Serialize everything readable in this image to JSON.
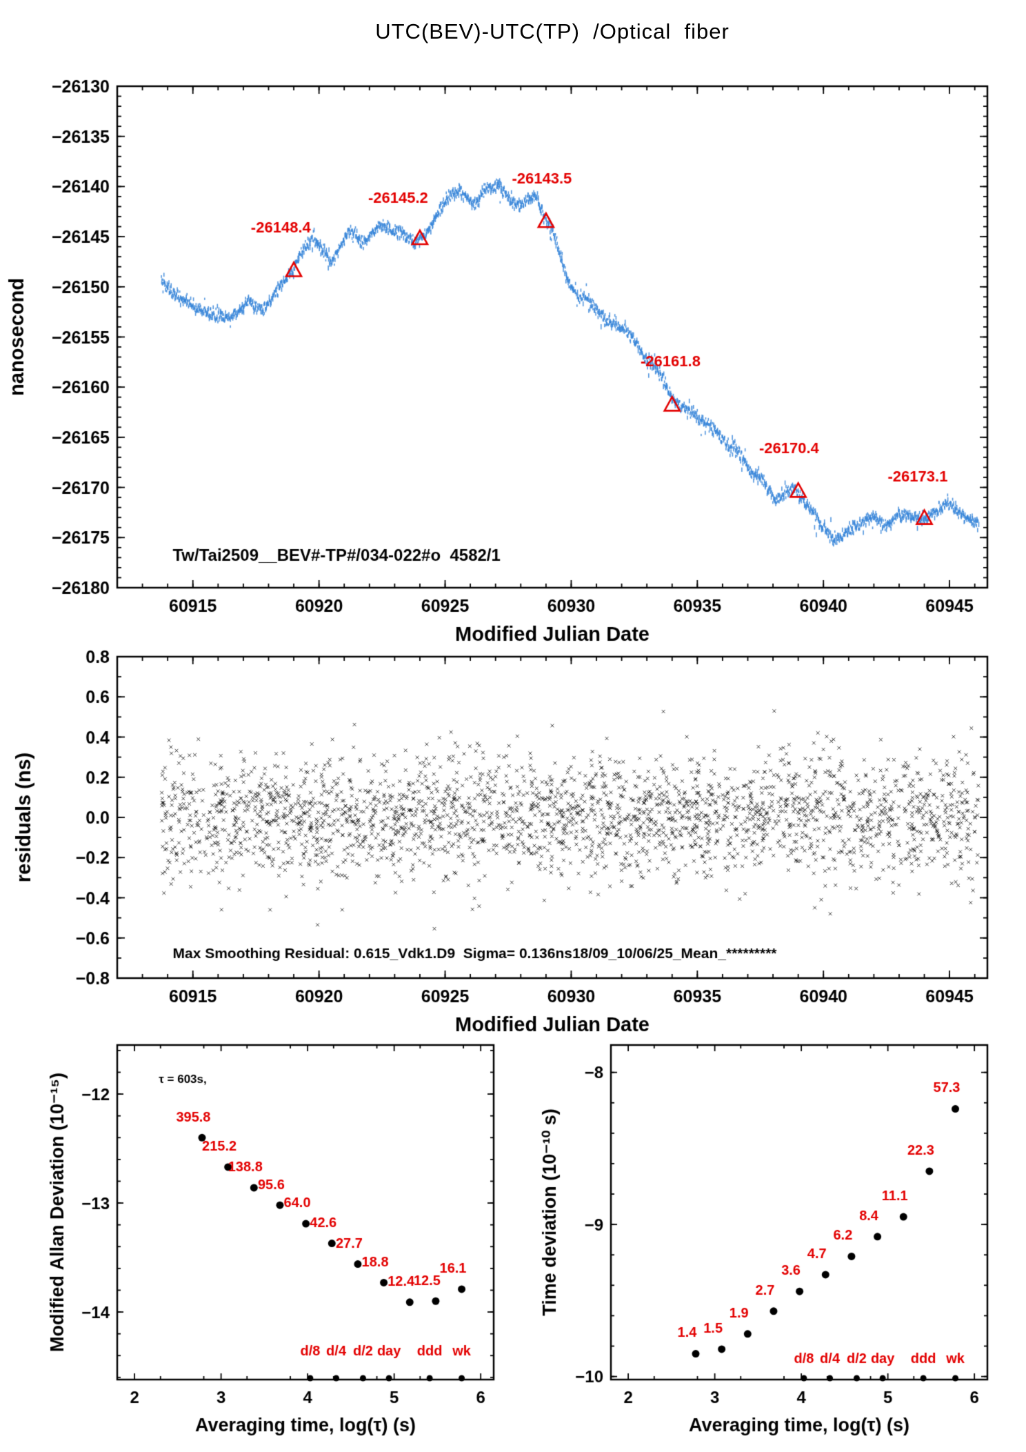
{
  "chart_title": "UTC(BEV)-UTC(TP)  /Optical  fiber",
  "colors": {
    "data_blue": "#3584d8",
    "accent_red": "#e30000",
    "ink": "#000000"
  },
  "chart_data": [
    {
      "id": "phase",
      "type": "scatter",
      "title": "UTC(BEV)-UTC(TP)  /Optical  fiber",
      "xlabel": "Modified Julian Date",
      "ylabel": "nanosecond",
      "xlim": [
        60912.0,
        60946.5
      ],
      "ylim": [
        -26180,
        -26130
      ],
      "xticks": [
        60915,
        60920,
        60925,
        60930,
        60935,
        60940,
        60945
      ],
      "xminor": 1,
      "yticks": [
        -26180,
        -26175,
        -26170,
        -26165,
        -26160,
        -26155,
        -26150,
        -26145,
        -26140,
        -26135,
        -26130
      ],
      "yminor": 1,
      "annotation": {
        "text": "Tw/Tai2509__BEV#-TP#/034-022#o  4582/1",
        "x": 60914.2,
        "y": -26177.3
      },
      "series": {
        "noise_sd": 0.3,
        "n_points": 2200,
        "x_start": 60913.75,
        "x_end": 60946.15,
        "waypoints": [
          [
            60913.75,
            -26149.2
          ],
          [
            60914.0,
            -26150.0
          ],
          [
            60914.3,
            -26150.9
          ],
          [
            60914.7,
            -26151.3
          ],
          [
            60915.0,
            -26151.8
          ],
          [
            60915.4,
            -26152.4
          ],
          [
            60915.8,
            -26152.9
          ],
          [
            60916.2,
            -26153.1
          ],
          [
            60916.6,
            -26152.9
          ],
          [
            60917.0,
            -26152.2
          ],
          [
            60917.2,
            -26151.3
          ],
          [
            60917.5,
            -26151.9
          ],
          [
            60917.8,
            -26152.4
          ],
          [
            60918.1,
            -26151.3
          ],
          [
            60918.4,
            -26150.1
          ],
          [
            60918.7,
            -26149.1
          ],
          [
            60919.0,
            -26148.2
          ],
          [
            60919.3,
            -26146.6
          ],
          [
            60919.6,
            -26145.6
          ],
          [
            60919.9,
            -26145.5
          ],
          [
            60920.2,
            -26146.5
          ],
          [
            60920.5,
            -26147.6
          ],
          [
            60920.8,
            -26146.1
          ],
          [
            60921.1,
            -26144.7
          ],
          [
            60921.4,
            -26144.5
          ],
          [
            60921.7,
            -26145.6
          ],
          [
            60922.0,
            -26145.1
          ],
          [
            60922.3,
            -26144.1
          ],
          [
            60922.6,
            -26143.9
          ],
          [
            60922.9,
            -26144.6
          ],
          [
            60923.2,
            -26144.2
          ],
          [
            60923.5,
            -26145.1
          ],
          [
            60923.8,
            -26145.5
          ],
          [
            60924.1,
            -26145.1
          ],
          [
            60924.4,
            -26144.2
          ],
          [
            60924.7,
            -26142.6
          ],
          [
            60925.0,
            -26141.4
          ],
          [
            60925.3,
            -26140.9
          ],
          [
            60925.6,
            -26140.4
          ],
          [
            60925.9,
            -26141.3
          ],
          [
            60926.2,
            -26141.7
          ],
          [
            60926.5,
            -26140.5
          ],
          [
            60926.8,
            -26140.1
          ],
          [
            60927.1,
            -26139.9
          ],
          [
            60927.4,
            -26140.8
          ],
          [
            60927.7,
            -26141.7
          ],
          [
            60928.0,
            -26141.9
          ],
          [
            60928.3,
            -26141.3
          ],
          [
            60928.6,
            -26141.1
          ],
          [
            60928.85,
            -26142.5
          ],
          [
            60929.05,
            -26143.6
          ],
          [
            60929.3,
            -26144.6
          ],
          [
            60929.55,
            -26146.8
          ],
          [
            60929.8,
            -26148.9
          ],
          [
            60930.05,
            -26150.2
          ],
          [
            60930.35,
            -26150.9
          ],
          [
            60930.7,
            -26151.3
          ],
          [
            60931.0,
            -26152.4
          ],
          [
            60931.4,
            -26153.4
          ],
          [
            60931.8,
            -26153.9
          ],
          [
            60932.2,
            -26154.3
          ],
          [
            60932.6,
            -26155.7
          ],
          [
            60933.0,
            -26157.4
          ],
          [
            60933.3,
            -26157.9
          ],
          [
            60933.6,
            -26158.9
          ],
          [
            60933.9,
            -26160.6
          ],
          [
            60934.2,
            -26161.7
          ],
          [
            60934.5,
            -26162.1
          ],
          [
            60934.8,
            -26162.5
          ],
          [
            60935.1,
            -26163.1
          ],
          [
            60935.4,
            -26163.7
          ],
          [
            60935.7,
            -26164.3
          ],
          [
            60936.0,
            -26165.2
          ],
          [
            60936.3,
            -26165.9
          ],
          [
            60936.6,
            -26166.5
          ],
          [
            60936.9,
            -26167.6
          ],
          [
            60937.2,
            -26168.6
          ],
          [
            60937.5,
            -26169.0
          ],
          [
            60937.8,
            -26170.2
          ],
          [
            60938.1,
            -26171.3
          ],
          [
            60938.4,
            -26170.7
          ],
          [
            60938.7,
            -26170.1
          ],
          [
            60939.0,
            -26170.5
          ],
          [
            60939.3,
            -26171.5
          ],
          [
            60939.6,
            -26172.5
          ],
          [
            60939.9,
            -26173.7
          ],
          [
            60940.2,
            -26174.7
          ],
          [
            60940.5,
            -26175.2
          ],
          [
            60940.8,
            -26174.7
          ],
          [
            60941.1,
            -26174.1
          ],
          [
            60941.4,
            -26173.7
          ],
          [
            60941.7,
            -26173.3
          ],
          [
            60942.0,
            -26172.9
          ],
          [
            60942.3,
            -26173.4
          ],
          [
            60942.6,
            -26173.7
          ],
          [
            60942.9,
            -26172.9
          ],
          [
            60943.2,
            -26172.6
          ],
          [
            60943.5,
            -26173.0
          ],
          [
            60943.8,
            -26173.2
          ],
          [
            60944.1,
            -26173.1
          ],
          [
            60944.4,
            -26172.5
          ],
          [
            60944.7,
            -26171.9
          ],
          [
            60945.0,
            -26171.6
          ],
          [
            60945.3,
            -26172.3
          ],
          [
            60945.6,
            -26172.9
          ],
          [
            60945.9,
            -26173.3
          ],
          [
            60946.15,
            -26173.5
          ]
        ]
      },
      "markers": [
        {
          "x": 60919,
          "y": -26148.4,
          "label": "-26148.4",
          "lx": 60917.3,
          "ly": -26144.6
        },
        {
          "x": 60924,
          "y": -26145.2,
          "label": "-26145.2",
          "lx": 60921.95,
          "ly": -26141.6
        },
        {
          "x": 60929,
          "y": -26143.5,
          "label": "-26143.5",
          "lx": 60927.65,
          "ly": -26139.7
        },
        {
          "x": 60934,
          "y": -26161.8,
          "label": "-26161.8",
          "lx": 60932.75,
          "ly": -26157.9
        },
        {
          "x": 60939,
          "y": -26170.4,
          "label": "-26170.4",
          "lx": 60937.45,
          "ly": -26166.6
        },
        {
          "x": 60944,
          "y": -26173.1,
          "label": "-26173.1",
          "lx": 60942.55,
          "ly": -26169.4
        }
      ]
    },
    {
      "id": "residuals",
      "type": "scatter",
      "xlabel": "Modified Julian Date",
      "ylabel": "residuals (ns)",
      "xlim": [
        60912.0,
        60946.5
      ],
      "ylim": [
        -0.8,
        0.8
      ],
      "xticks": [
        60915,
        60920,
        60925,
        60930,
        60935,
        60940,
        60945
      ],
      "xminor": 1,
      "yticks": [
        -0.8,
        -0.6,
        -0.4,
        -0.2,
        0,
        0.2,
        0.4,
        0.6,
        0.8
      ],
      "yminor": 0.1,
      "ytick_decimals": 1,
      "annotation": {
        "text": "Max Smoothing Residual: 0.615_Vdk1.D9  Sigma= 0.136ns18/09_10/06/25_Mean_*********",
        "x": 60914.2,
        "y": -0.7
      },
      "series": {
        "n_points": 2700,
        "sd": 0.15,
        "clip": 0.62,
        "x_start": 60913.75,
        "x_end": 60946.15
      }
    },
    {
      "id": "mdev",
      "type": "scatter",
      "xlabel": "Averaging time, log(τ) (s)",
      "ylabel": "Modified Allan Deviation (10⁻¹⁵)",
      "xlim": [
        1.8,
        6.15
      ],
      "ylim": [
        -14.62,
        -11.55
      ],
      "xticks": [
        2,
        3,
        4,
        5,
        6
      ],
      "xminor": 0.5,
      "yticks": [
        -12,
        -13,
        -14
      ],
      "yminor": 0.2,
      "note": {
        "text": "τ = 603s,",
        "x": 2.28,
        "y": -11.9
      },
      "points": {
        "x": [
          2.78,
          3.08,
          3.38,
          3.68,
          3.98,
          4.28,
          4.58,
          4.88,
          5.18,
          5.48,
          5.78
        ],
        "values": [
          395.8,
          215.2,
          138.8,
          95.6,
          64.0,
          42.6,
          27.7,
          18.8,
          12.4,
          12.5,
          16.1
        ],
        "log_y": [
          -12.4,
          -12.67,
          -12.86,
          -13.02,
          -13.19,
          -13.37,
          -13.56,
          -13.73,
          -13.91,
          -13.9,
          -13.79
        ],
        "labels": [
          "395.8",
          "215.2",
          "138.8",
          "95.6",
          "64.0",
          "42.6",
          "27.7",
          "18.8",
          "12.4",
          "12.5",
          "16.1"
        ],
        "label_dx": -0.1,
        "label_dy": 0.15
      },
      "day_markers": {
        "x": [
          4.03,
          4.33,
          4.64,
          4.94,
          5.41,
          5.78
        ],
        "labels": [
          "d/8",
          "d/4",
          "d/2",
          "day",
          "ddd",
          "wk"
        ],
        "label_y": -14.4
      }
    },
    {
      "id": "tdev",
      "type": "scatter",
      "xlabel": "Averaging time, log(τ) (s)",
      "ylabel": "Time deviation (10⁻¹⁰ s)",
      "xlim": [
        1.8,
        6.15
      ],
      "ylim": [
        -10.02,
        -7.82
      ],
      "xticks": [
        2,
        3,
        4,
        5,
        6
      ],
      "xminor": 0.5,
      "yticks": [
        -8,
        -9,
        -10
      ],
      "yminor": 0.2,
      "points": {
        "x": [
          2.78,
          3.08,
          3.38,
          3.68,
          3.98,
          4.28,
          4.58,
          4.88,
          5.18,
          5.48,
          5.78
        ],
        "values": [
          1.4,
          1.5,
          1.9,
          2.7,
          3.6,
          4.7,
          6.2,
          8.4,
          11.1,
          22.3,
          57.3
        ],
        "log_y": [
          -9.85,
          -9.82,
          -9.72,
          -9.57,
          -9.44,
          -9.33,
          -9.21,
          -9.08,
          -8.95,
          -8.65,
          -8.24
        ],
        "labels": [
          "1.4",
          "1.5",
          "1.9",
          "2.7",
          "3.6",
          "4.7",
          "6.2",
          "8.4",
          "11.1",
          "22.3",
          "57.3"
        ],
        "label_dx": -0.1,
        "label_dy": 0.11
      },
      "day_markers": {
        "x": [
          4.03,
          4.33,
          4.64,
          4.94,
          5.41,
          5.78
        ],
        "labels": [
          "d/8",
          "d/4",
          "d/2",
          "day",
          "ddd",
          "wk"
        ],
        "label_y": -9.91
      }
    }
  ]
}
